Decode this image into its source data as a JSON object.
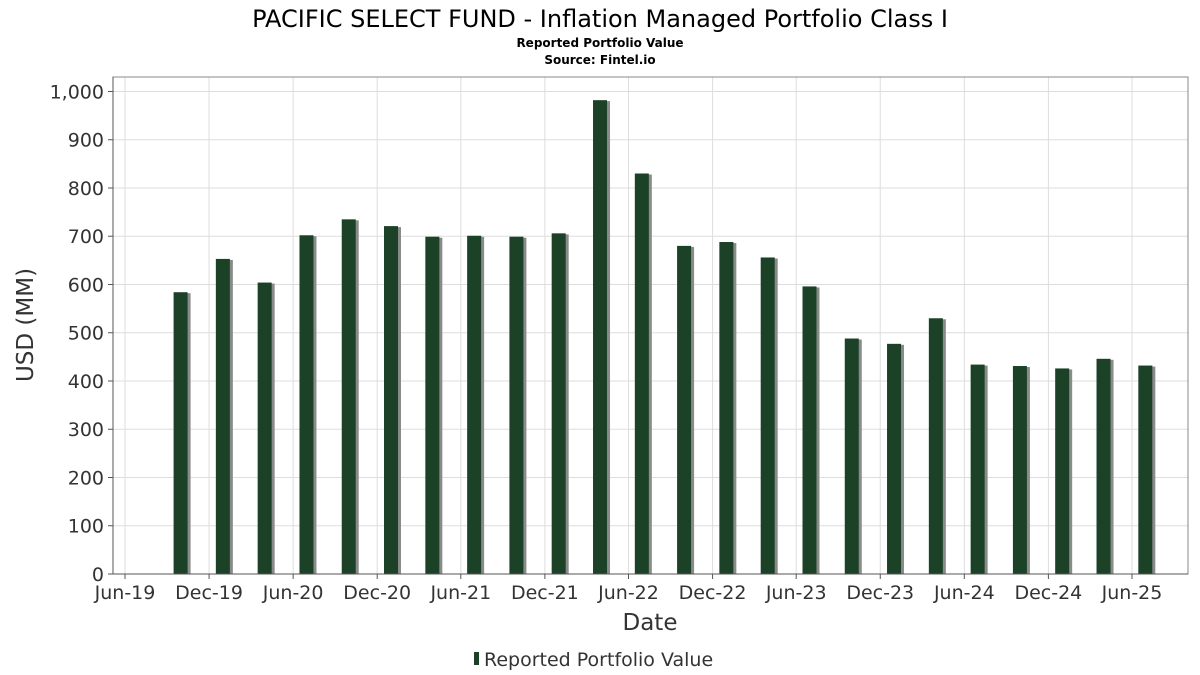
{
  "chart_data": {
    "type": "bar",
    "title": "PACIFIC SELECT FUND - Inflation Managed Portfolio Class I",
    "subtitle": "Reported Portfolio Value",
    "source": "Source: Fintel.io",
    "xlabel": "Date",
    "ylabel": "USD (MM)",
    "ylim": [
      0,
      1030
    ],
    "xlim": [
      "2019-06-01",
      "2025-07-31"
    ],
    "grid": true,
    "legend_position": "bottom-center",
    "colors": {
      "bar": "#1b4226",
      "bar_shadow": "#8a8a8a",
      "grid": "#dddddd",
      "frame": "#888888"
    },
    "y_ticks": [
      0,
      100,
      200,
      300,
      400,
      500,
      600,
      700,
      800,
      900,
      1000
    ],
    "y_tick_labels": [
      "0",
      "100",
      "200",
      "300",
      "400",
      "500",
      "600",
      "700",
      "800",
      "900",
      "1,000"
    ],
    "x_ticks": [
      "2019-06-01",
      "2019-12-01",
      "2020-06-01",
      "2020-12-01",
      "2021-06-01",
      "2021-12-01",
      "2022-06-01",
      "2022-12-01",
      "2023-06-01",
      "2023-12-01",
      "2024-06-01",
      "2024-12-01",
      "2025-06-01"
    ],
    "x_tick_labels": [
      "Jun-19",
      "Dec-19",
      "Jun-20",
      "Dec-20",
      "Jun-21",
      "Dec-21",
      "Jun-22",
      "Dec-22",
      "Jun-23",
      "Dec-23",
      "Jun-24",
      "Dec-24",
      "Jun-25"
    ],
    "series": [
      {
        "name": "Reported Portfolio Value",
        "x": [
          "2019-09-30",
          "2019-12-31",
          "2020-03-31",
          "2020-06-30",
          "2020-09-30",
          "2020-12-31",
          "2021-03-31",
          "2021-06-30",
          "2021-09-30",
          "2021-12-31",
          "2022-03-31",
          "2022-06-30",
          "2022-09-30",
          "2022-12-31",
          "2023-03-31",
          "2023-06-30",
          "2023-09-30",
          "2023-12-31",
          "2024-03-31",
          "2024-06-30",
          "2024-09-30",
          "2024-12-31",
          "2025-03-31",
          "2025-06-30"
        ],
        "values": [
          584,
          653,
          604,
          702,
          735,
          721,
          699,
          701,
          699,
          706,
          982,
          830,
          680,
          688,
          656,
          596,
          488,
          477,
          530,
          434,
          431,
          426,
          446,
          432
        ]
      }
    ]
  }
}
